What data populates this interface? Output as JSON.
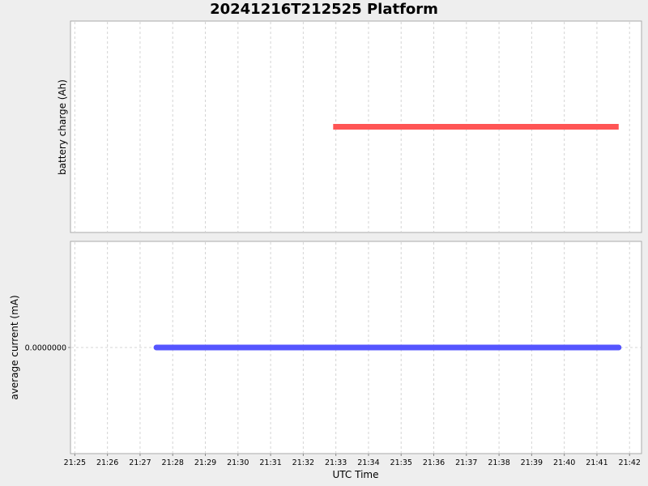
{
  "chart_data": {
    "title": "20241216T212525 Platform",
    "xlabel": "UTC Time",
    "x_ticks": [
      "21:25",
      "21:26",
      "21:27",
      "21:28",
      "21:29",
      "21:30",
      "21:31",
      "21:32",
      "21:33",
      "21:34",
      "21:35",
      "21:36",
      "21:37",
      "21:38",
      "21:39",
      "21:40",
      "21:41",
      "21:42"
    ],
    "x_range": [
      "21:24:52",
      "21:42:22"
    ],
    "grid": true,
    "plots": [
      {
        "type": "line",
        "ylabel": "battery charge (Ah)",
        "y_ticks": [],
        "series": [
          {
            "color": "#ff5555",
            "points": [
              [
                "21:32:55",
                0
              ],
              [
                "21:41:40",
                0
              ]
            ]
          }
        ]
      },
      {
        "type": "line",
        "ylabel": "average current (mA)",
        "y_ticks": [
          "0.0000000"
        ],
        "series": [
          {
            "color": "#5555ff",
            "points": [
              [
                "21:27:30",
                0
              ],
              [
                "21:41:40",
                0
              ]
            ]
          }
        ]
      }
    ]
  }
}
